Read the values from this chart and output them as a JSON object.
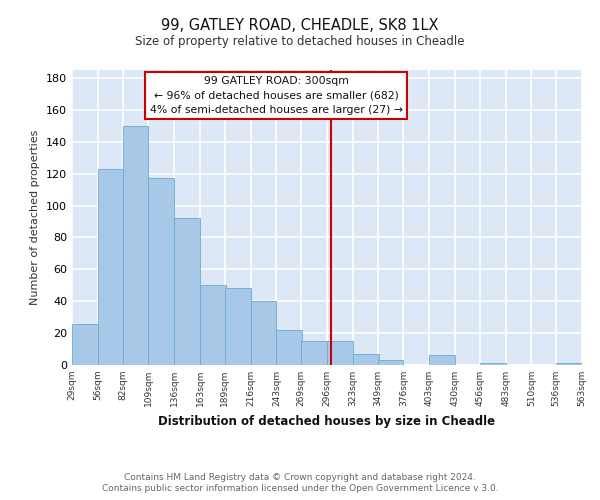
{
  "title": "99, GATLEY ROAD, CHEADLE, SK8 1LX",
  "subtitle": "Size of property relative to detached houses in Cheadle",
  "xlabel": "Distribution of detached houses by size in Cheadle",
  "ylabel": "Number of detached properties",
  "bar_color": "#a8c8e8",
  "bar_edge_color": "#6aaad4",
  "plot_bg_color": "#dce8f5",
  "fig_bg_color": "#ffffff",
  "grid_color": "#ffffff",
  "bins_left": [
    29,
    56,
    82,
    109,
    136,
    163,
    189,
    216,
    243,
    269,
    296,
    323,
    349,
    376,
    403,
    430,
    456,
    483,
    510,
    536
  ],
  "bin_width": 27,
  "bar_heights": [
    26,
    123,
    150,
    117,
    92,
    50,
    48,
    40,
    22,
    15,
    15,
    7,
    3,
    0,
    6,
    0,
    1,
    0,
    0,
    1
  ],
  "tick_labels": [
    "29sqm",
    "56sqm",
    "82sqm",
    "109sqm",
    "136sqm",
    "163sqm",
    "189sqm",
    "216sqm",
    "243sqm",
    "269sqm",
    "296sqm",
    "323sqm",
    "349sqm",
    "376sqm",
    "403sqm",
    "430sqm",
    "456sqm",
    "483sqm",
    "510sqm",
    "536sqm",
    "563sqm"
  ],
  "vline_x": 300,
  "vline_color": "#cc0000",
  "annotation_line1": "99 GATLEY ROAD: 300sqm",
  "annotation_line2": "← 96% of detached houses are smaller (682)",
  "annotation_line3": "4% of semi-detached houses are larger (27) →",
  "ylim": [
    0,
    185
  ],
  "yticks": [
    0,
    20,
    40,
    60,
    80,
    100,
    120,
    140,
    160,
    180
  ],
  "footer1": "Contains HM Land Registry data © Crown copyright and database right 2024.",
  "footer2": "Contains public sector information licensed under the Open Government Licence v 3.0."
}
